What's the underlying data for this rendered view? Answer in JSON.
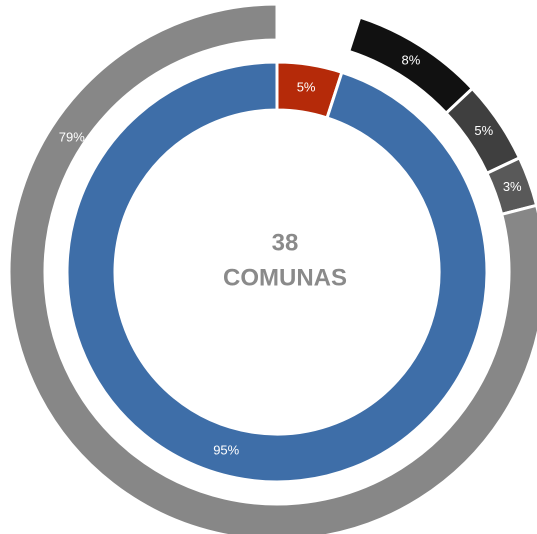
{
  "chart_data": {
    "type": "donut",
    "center_text": [
      "38",
      "COMUNAS"
    ],
    "series": [
      {
        "values": [
          5,
          95
        ],
        "colors": [
          "#b52a09",
          "#3e6ea8"
        ],
        "value_labels": [
          "5%",
          "95%"
        ]
      },
      {
        "values": [
          5,
          8,
          5,
          3,
          79
        ],
        "colors": [
          null,
          "#111111",
          "#3f3f3f",
          "#595959",
          "#878787"
        ],
        "value_labels": [
          null,
          "8%",
          "5%",
          "3%",
          "79%"
        ]
      }
    ]
  }
}
